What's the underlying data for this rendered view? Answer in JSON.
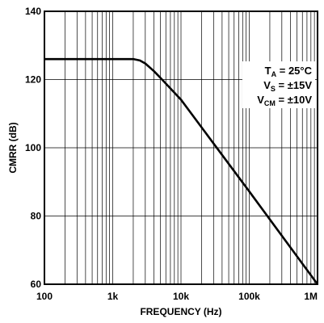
{
  "chart_data": {
    "type": "line",
    "title": "",
    "xlabel": "FREQUENCY (Hz)",
    "ylabel": "CMRR (dB)",
    "x_scale": "log",
    "xlim": [
      100,
      1000000
    ],
    "ylim": [
      60,
      140
    ],
    "grid": true,
    "x_tick_labels": [
      "100",
      "1k",
      "10k",
      "100k",
      "1M"
    ],
    "x_tick_values": [
      100,
      1000,
      10000,
      100000,
      1000000
    ],
    "y_ticks": [
      60,
      80,
      100,
      120,
      140
    ],
    "annotations": {
      "ta_label": "T",
      "ta_sub": "A",
      "ta_value": " = 25°C",
      "vs_label": "V",
      "vs_sub": "S",
      "vs_value": " = ±15V",
      "vcm_label": "V",
      "vcm_sub": "CM",
      "vcm_value": " = ±10V"
    },
    "series": [
      {
        "points": [
          [
            100,
            126
          ],
          [
            1000,
            126
          ],
          [
            2000,
            126
          ],
          [
            2500,
            125.6
          ],
          [
            3000,
            124.7
          ],
          [
            4000,
            122.5
          ],
          [
            5000,
            120.5
          ],
          [
            7000,
            117.4
          ],
          [
            10000,
            114.1
          ],
          [
            100000,
            87.2
          ],
          [
            1000000,
            60
          ]
        ]
      }
    ]
  }
}
